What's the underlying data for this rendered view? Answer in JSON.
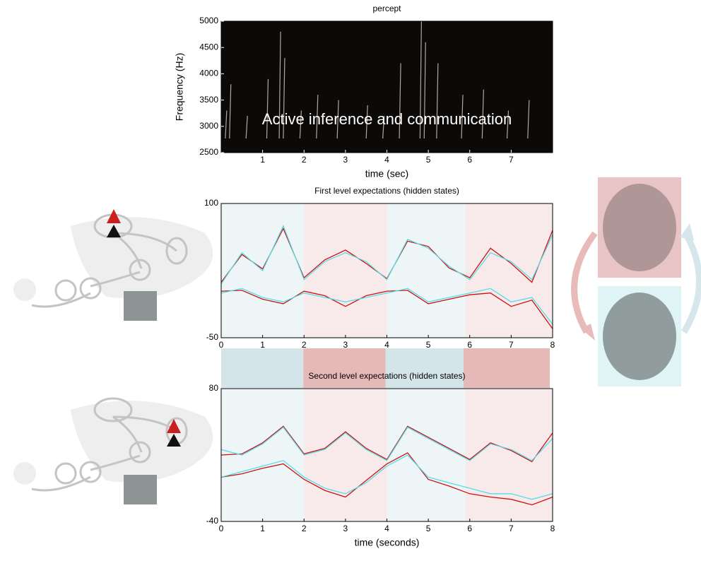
{
  "chart_data": [
    {
      "type": "spectrogram",
      "title": "percept",
      "xlabel": "time (sec)",
      "ylabel": "Frequency (Hz)",
      "annotation": "Active inference and communication",
      "xlim": [
        0,
        8
      ],
      "ylim": [
        2500,
        5000
      ],
      "xticks": [
        1,
        2,
        3,
        4,
        5,
        6,
        7
      ],
      "yticks": [
        2500,
        3000,
        3500,
        4000,
        4500,
        5000
      ],
      "background": "#0c0a08",
      "color": "#d8d0c4",
      "x": [
        0.1,
        0.2,
        0.6,
        1.1,
        1.4,
        1.5,
        1.9,
        2.3,
        2.8,
        3.5,
        3.9,
        4.3,
        4.8,
        4.9,
        5.2,
        5.8,
        6.3,
        6.9,
        7.4
      ],
      "values": [
        3300,
        3800,
        3200,
        3900,
        4800,
        4300,
        3300,
        3600,
        3500,
        3400,
        3200,
        4200,
        5000,
        4600,
        4200,
        3600,
        3700,
        3300,
        3500
      ]
    },
    {
      "type": "line",
      "title": "First level expectations (hidden states)",
      "xlabel": "time (seconds)",
      "xlim": [
        0,
        8
      ],
      "ylim": [
        -50,
        100
      ],
      "xticks": [
        0,
        1,
        2,
        3,
        4,
        5,
        6,
        7,
        8
      ],
      "yticks": [
        -50,
        100
      ],
      "bands": [
        {
          "from": 0,
          "to": 2,
          "color": "#eef5f6"
        },
        {
          "from": 2,
          "to": 4,
          "color": "#f8eaea"
        },
        {
          "from": 4,
          "to": 5.9,
          "color": "#eef5f6"
        },
        {
          "from": 5.9,
          "to": 8,
          "color": "#f8eaea"
        }
      ],
      "x": [
        0,
        0.5,
        1,
        1.5,
        2,
        2.5,
        3,
        3.5,
        4,
        4.5,
        5,
        5.5,
        6,
        6.5,
        7,
        7.5,
        8
      ],
      "series": [
        {
          "color": "#cc1111",
          "values": [
            12,
            43,
            27,
            72,
            17,
            37,
            48,
            33,
            16,
            58,
            52,
            28,
            17,
            50,
            33,
            12,
            70
          ]
        },
        {
          "color": "#cc1111",
          "values": [
            2,
            3,
            -7,
            -12,
            2,
            -3,
            -15,
            -3,
            2,
            3,
            -12,
            -7,
            -2,
            0,
            -15,
            -8,
            -40
          ]
        },
        {
          "color": "#55dde8",
          "values": [
            10,
            45,
            25,
            75,
            15,
            35,
            45,
            35,
            15,
            60,
            50,
            30,
            15,
            45,
            35,
            15,
            65
          ]
        },
        {
          "color": "#55dde8",
          "values": [
            0,
            5,
            -5,
            -10,
            0,
            -5,
            -10,
            -5,
            0,
            5,
            -10,
            -5,
            0,
            5,
            -10,
            -5,
            -35
          ]
        }
      ]
    },
    {
      "type": "phase",
      "xlim": [
        0,
        8
      ],
      "bands": [
        {
          "from": 0,
          "to": 2,
          "color": "#d3e5e8"
        },
        {
          "from": 2,
          "to": 4,
          "color": "#e6b9b9"
        },
        {
          "from": 4,
          "to": 5.9,
          "color": "#d3e5e8"
        },
        {
          "from": 5.9,
          "to": 8,
          "color": "#e6b9b9"
        }
      ]
    },
    {
      "type": "line",
      "title": "Second level expectations (hidden states)",
      "xlabel": "time (seconds)",
      "xlim": [
        0,
        8
      ],
      "ylim": [
        -40,
        80
      ],
      "xticks": [
        0,
        1,
        2,
        3,
        4,
        5,
        6,
        7,
        8
      ],
      "yticks": [
        -40,
        80
      ],
      "bands": [
        {
          "from": 0,
          "to": 2,
          "color": "#eef5f6"
        },
        {
          "from": 2,
          "to": 4,
          "color": "#f8eaea"
        },
        {
          "from": 4,
          "to": 5.9,
          "color": "#eef5f6"
        },
        {
          "from": 5.9,
          "to": 8,
          "color": "#f8eaea"
        }
      ],
      "x": [
        0,
        0.5,
        1,
        1.5,
        2,
        2.5,
        3,
        3.5,
        4,
        4.5,
        5,
        5.5,
        6,
        6.5,
        7,
        7.5,
        8
      ],
      "series": [
        {
          "color": "#cc1111",
          "values": [
            20,
            21,
            31,
            46,
            21,
            26,
            41,
            26,
            16,
            46,
            36,
            26,
            16,
            31,
            24,
            14,
            40
          ]
        },
        {
          "color": "#cc1111",
          "values": [
            0,
            3,
            8,
            12,
            -2,
            -12,
            -18,
            -3,
            12,
            22,
            -2,
            -8,
            -15,
            -18,
            -20,
            -25,
            -18
          ]
        },
        {
          "color": "#55dde8",
          "values": [
            25,
            20,
            30,
            45,
            20,
            25,
            40,
            25,
            15,
            45,
            35,
            25,
            15,
            30,
            25,
            15,
            35
          ]
        },
        {
          "color": "#55dde8",
          "values": [
            0,
            5,
            10,
            15,
            0,
            -10,
            -15,
            -5,
            10,
            20,
            0,
            -5,
            -10,
            -15,
            -15,
            -20,
            -15
          ]
        }
      ]
    }
  ]
}
